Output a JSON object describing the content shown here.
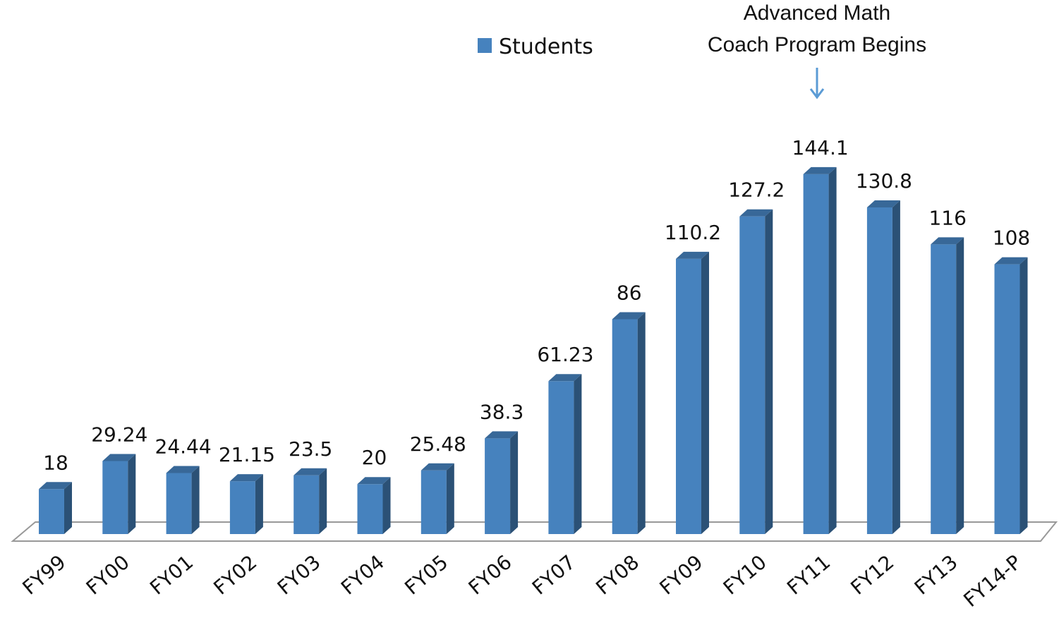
{
  "chart_data": {
    "type": "bar3d",
    "annotation": [
      "Advanced Math",
      "Coach Program Begins"
    ],
    "categories": [
      "FY99",
      "FY00",
      "FY01",
      "FY02",
      "FY03",
      "FY04",
      "FY05",
      "FY06",
      "FY07",
      "FY08",
      "FY09",
      "FY10",
      "FY11",
      "FY12",
      "FY13",
      "FY14-P"
    ],
    "series": [
      {
        "name": "Students",
        "color": "#4682be",
        "values": [
          18,
          29.24,
          24.44,
          21.15,
          23.5,
          20,
          25.48,
          38.3,
          61.23,
          86,
          110.2,
          127.2,
          144.1,
          130.8,
          116,
          108
        ]
      }
    ]
  }
}
